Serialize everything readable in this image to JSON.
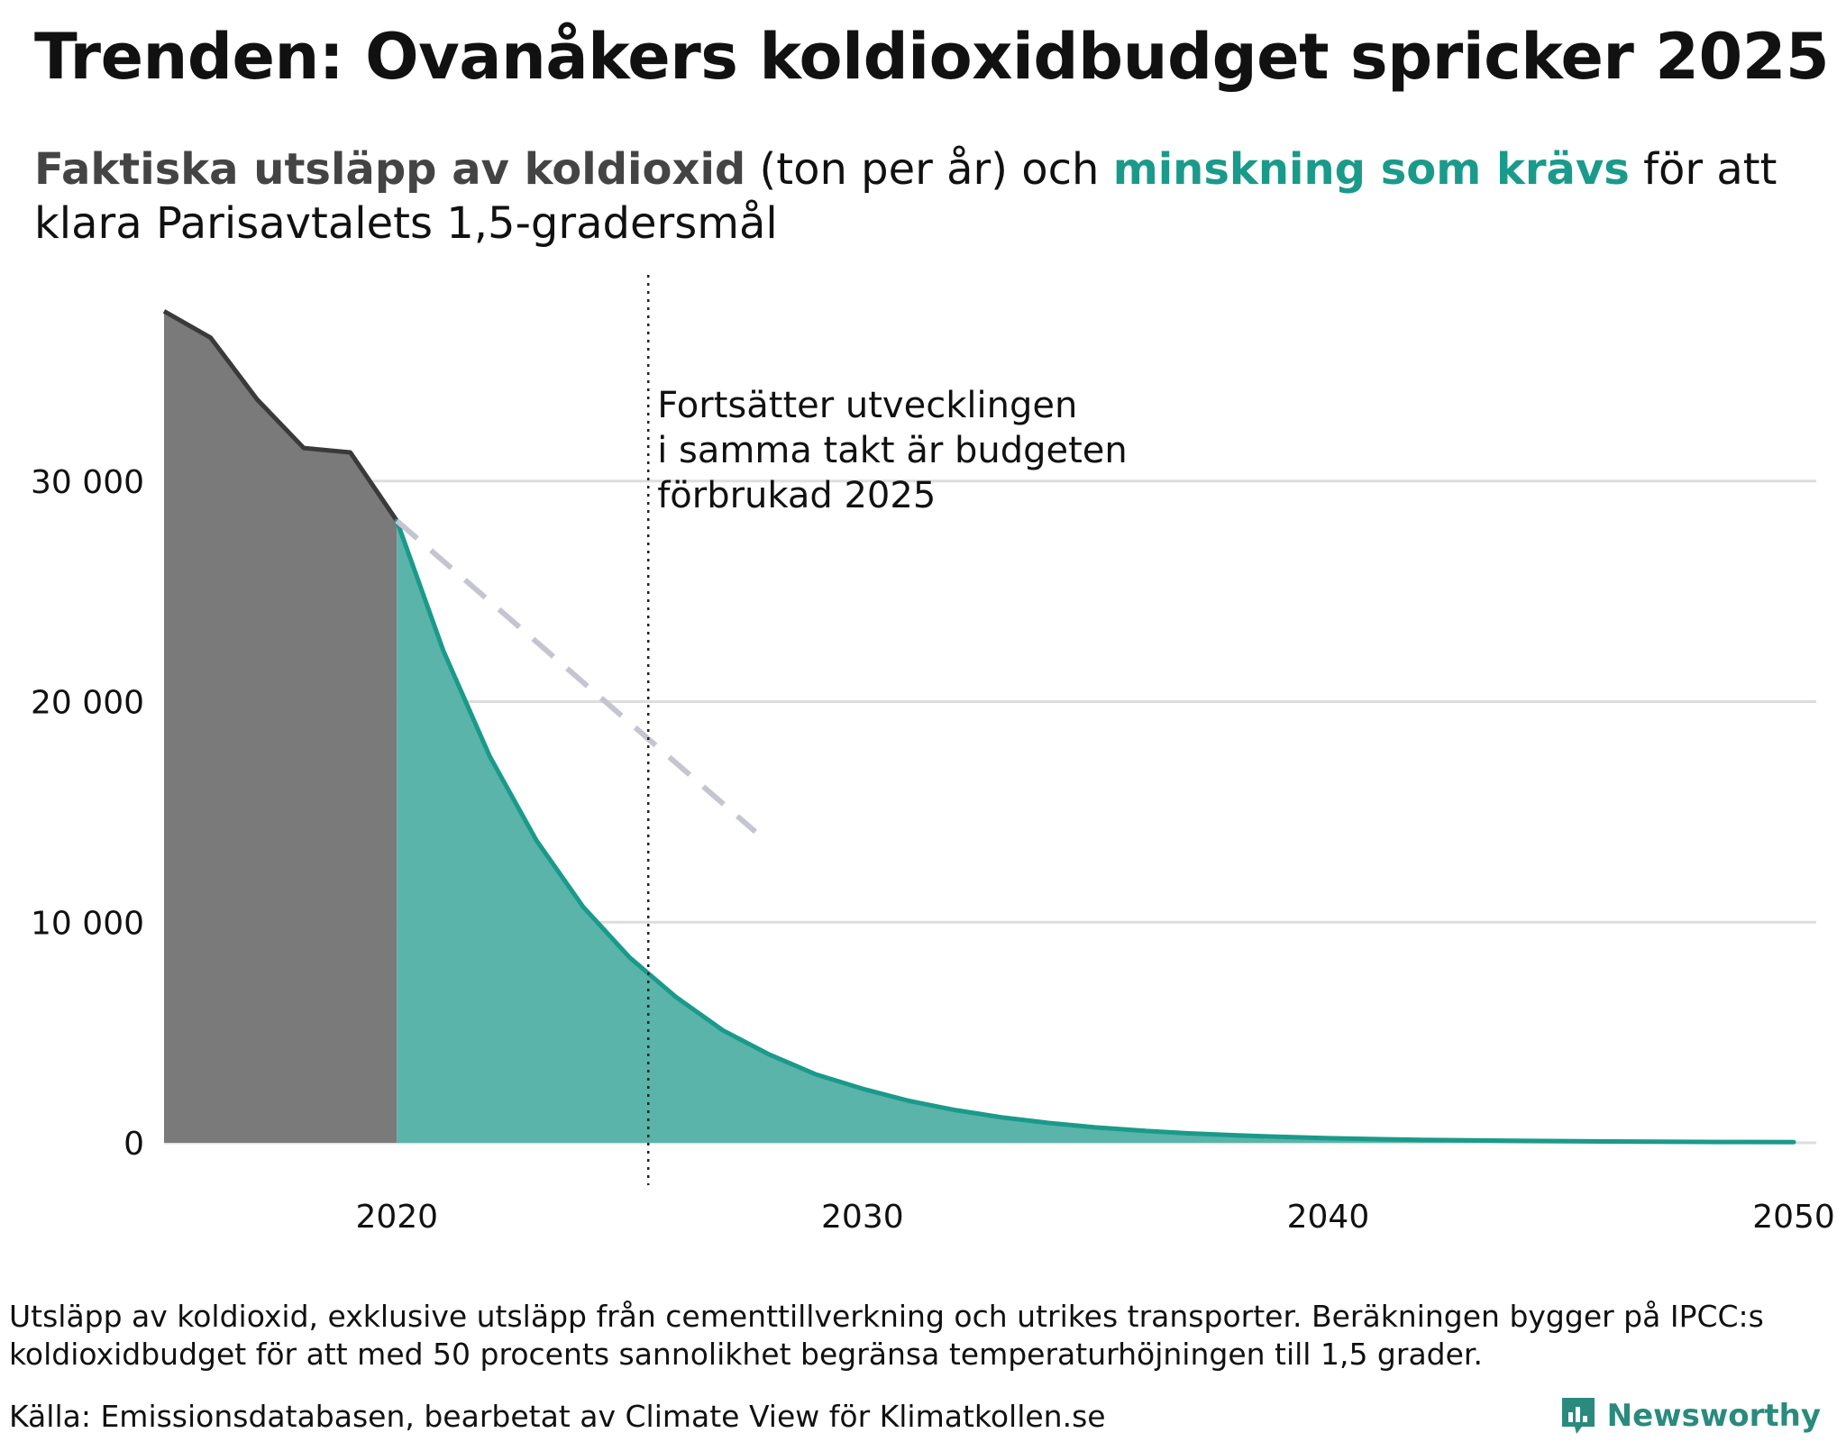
{
  "title": "Trenden: Ovanåkers koldioxidbudget spricker 2025",
  "subtitle": {
    "part_actual": "Faktiska utsläpp av koldioxid",
    "part_units": " (ton per år) och ",
    "part_required": "minskning som krävs",
    "part_rest": " för att klara Parisavtalets 1,5-gradersmål"
  },
  "colors": {
    "actual_fill": "#7a7a7a",
    "actual_line": "#3a3a3a",
    "required_fill": "#5ab4aa",
    "required_line": "#1a9a8a",
    "trend": "#c5c5d2",
    "grid": "#dddddd"
  },
  "chart_data": {
    "type": "area",
    "xlim": [
      2015,
      2050
    ],
    "ylim": [
      0,
      38000
    ],
    "x_ticks": [
      2020,
      2030,
      2040,
      2050
    ],
    "x_tick_labels": [
      "2020",
      "2030",
      "2040",
      "2050"
    ],
    "y_ticks": [
      0,
      10000,
      20000,
      30000
    ],
    "y_tick_labels": [
      "0",
      "10 000",
      "20 000",
      "30 000"
    ],
    "series": [
      {
        "name": "Faktiska utsläpp av koldioxid",
        "x": [
          2015,
          2016,
          2017,
          2018,
          2019,
          2020
        ],
        "values": [
          37700,
          36500,
          33700,
          31500,
          31300,
          28200
        ]
      },
      {
        "name": "Minskning som krävs",
        "x": [
          2020,
          2021,
          2022,
          2023,
          2024,
          2025,
          2026,
          2027,
          2028,
          2029,
          2030,
          2031,
          2032,
          2033,
          2034,
          2035,
          2036,
          2037,
          2038,
          2039,
          2040,
          2041,
          2042,
          2043,
          2044,
          2045,
          2046,
          2047,
          2048,
          2049,
          2050
        ],
        "values": [
          28200,
          22300,
          17500,
          13700,
          10700,
          8400,
          6600,
          5100,
          4000,
          3100,
          2450,
          1900,
          1480,
          1150,
          900,
          700,
          550,
          430,
          340,
          270,
          210,
          170,
          135,
          110,
          90,
          75,
          60,
          50,
          40,
          35,
          30
        ]
      },
      {
        "name": "Trend",
        "x": [
          2020,
          2027.7
        ],
        "values": [
          28200,
          14100
        ]
      }
    ],
    "marker_year": 2025.4,
    "annotation": [
      "Fortsätter utvecklingen",
      "i samma takt är budgeten",
      "förbrukad 2025"
    ]
  },
  "footnote": "Utsläpp av koldioxid, exklusive utsläpp från cementtillverkning och utrikes transporter. Beräkningen bygger på IPCC:s koldioxidbudget för att med 50 procents sannolikhet begränsa temperaturhöjningen till 1,5 grader.",
  "source": "Källa: Emissionsdatabasen, bearbetat av Climate View för Klimatkollen.se",
  "brand": "Newsworthy"
}
